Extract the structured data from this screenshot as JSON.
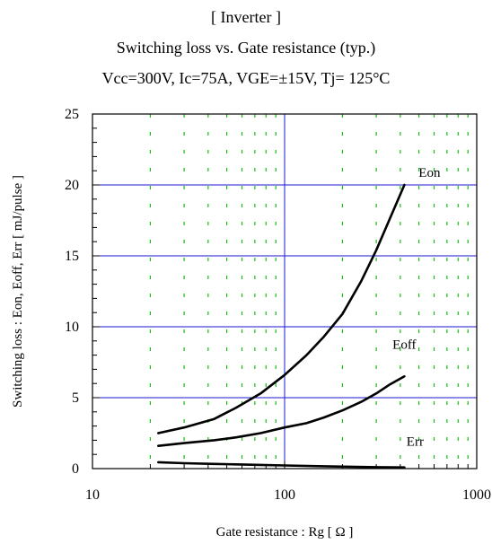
{
  "titles": {
    "line1": "[ Inverter ]",
    "line2": "Switching loss  vs.  Gate resistance (typ.)",
    "line3": "Vcc=300V, Ic=75A, VGE=±15V, Tj= 125°C"
  },
  "colors": {
    "major_grid": "#1a1ad0",
    "minor_grid": "#10c010",
    "curve": "#000000"
  },
  "chart_data": {
    "type": "line",
    "title": "Switching loss  vs.  Gate resistance (typ.)",
    "xlabel": "Gate resistance : Rg [ Ω ]",
    "ylabel": "Switching loss : Eon, Eoff, Err  [ mJ/pulse ]",
    "xscale": "log",
    "xlim": [
      10,
      1000
    ],
    "ylim": [
      0,
      25
    ],
    "xticks": [
      10,
      100,
      1000
    ],
    "xtick_labels": [
      "10",
      "100",
      "1000"
    ],
    "yticks": [
      0,
      5,
      10,
      15,
      20,
      25
    ],
    "ytick_labels": [
      "0",
      "5",
      "10",
      "15",
      "20",
      "25"
    ],
    "grid": true,
    "series": [
      {
        "name": "Eon",
        "x": [
          22,
          30,
          43,
          56,
          75,
          100,
          130,
          160,
          200,
          250,
          300,
          350,
          420
        ],
        "y": [
          2.5,
          2.9,
          3.5,
          4.3,
          5.3,
          6.6,
          8.0,
          9.3,
          10.9,
          13.2,
          15.4,
          17.5,
          20.0
        ]
      },
      {
        "name": "Eoff",
        "x": [
          22,
          30,
          43,
          56,
          75,
          100,
          130,
          160,
          200,
          250,
          300,
          350,
          420
        ],
        "y": [
          1.6,
          1.8,
          2.0,
          2.2,
          2.5,
          2.9,
          3.2,
          3.6,
          4.1,
          4.7,
          5.3,
          5.9,
          6.5
        ]
      },
      {
        "name": "Err",
        "x": [
          22,
          30,
          43,
          56,
          75,
          100,
          150,
          200,
          300,
          420
        ],
        "y": [
          0.45,
          0.38,
          0.33,
          0.3,
          0.26,
          0.22,
          0.17,
          0.14,
          0.1,
          0.08
        ]
      }
    ]
  }
}
